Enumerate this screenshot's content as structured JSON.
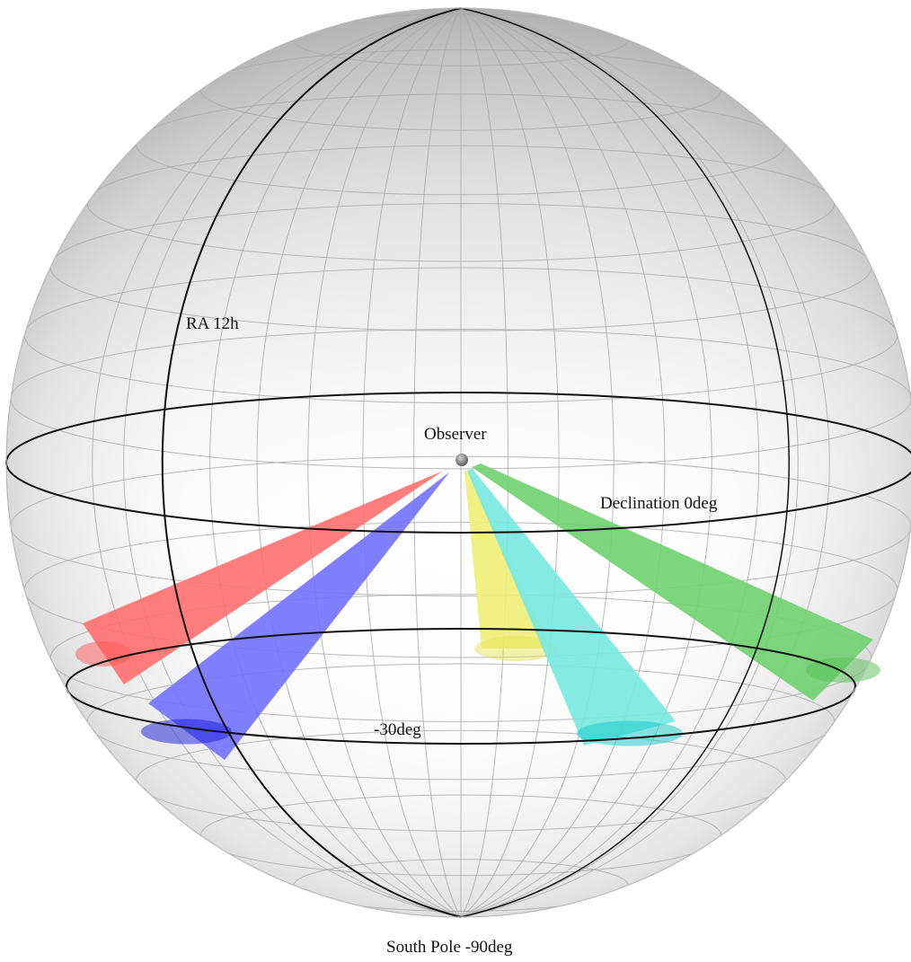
{
  "labels": {
    "ra": "RA 12h",
    "observer": "Observer",
    "declination_zero": "Declination 0deg",
    "declination_minus30": "-30deg",
    "south_pole": "South Pole -90deg"
  },
  "survey_fields": [
    {
      "color": "#ff6f6f",
      "dense_color": "#ff5555"
    },
    {
      "color": "#7272ff",
      "dense_color": "#1a1adc"
    },
    {
      "color": "#eeee77",
      "dense_color": "#e3e35c"
    },
    {
      "color": "#78e8e0",
      "dense_color": "#12c8c8"
    },
    {
      "color": "#6fd06f",
      "dense_color": "#55c055"
    }
  ],
  "colors": {
    "grid": "#a8a8a8",
    "highlight_lines": "#111111",
    "sphere_shade": "#9a9a9a"
  }
}
